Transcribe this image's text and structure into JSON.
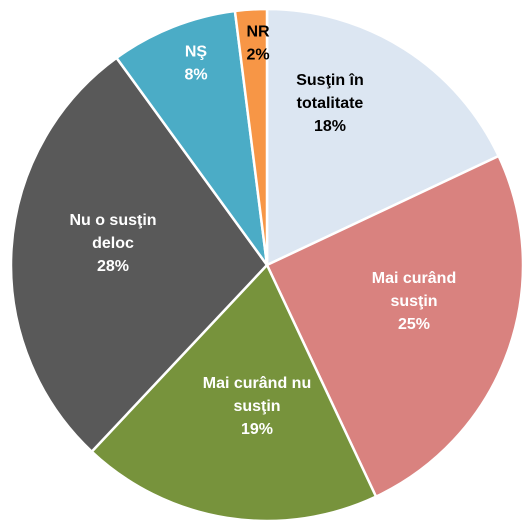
{
  "chart_data": {
    "type": "pie",
    "categories": [
      "Susţin în totalitate",
      "Mai curând susţin",
      "Mai curând nu susţin",
      "Nu o susţin deloc",
      "NŞ",
      "NR"
    ],
    "values": [
      18,
      25,
      19,
      28,
      8,
      2
    ],
    "value_labels": [
      "18%",
      "25%",
      "19%",
      "28%",
      "8%",
      "2%"
    ],
    "colors": [
      "#dce6f2",
      "#d9827f",
      "#77933c",
      "#595959",
      "#4bacc6",
      "#f79646"
    ]
  }
}
